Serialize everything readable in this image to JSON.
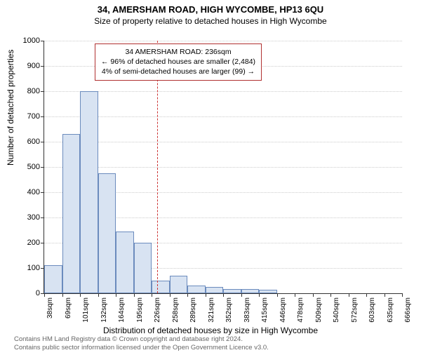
{
  "title": "34, AMERSHAM ROAD, HIGH WYCOMBE, HP13 6QU",
  "subtitle": "Size of property relative to detached houses in High Wycombe",
  "chart": {
    "type": "histogram",
    "y_label": "Number of detached properties",
    "x_label": "Distribution of detached houses by size in High Wycombe",
    "ylim": [
      0,
      1000
    ],
    "ytick_step": 100,
    "x_tick_labels": [
      "38sqm",
      "69sqm",
      "101sqm",
      "132sqm",
      "164sqm",
      "195sqm",
      "226sqm",
      "258sqm",
      "289sqm",
      "321sqm",
      "352sqm",
      "383sqm",
      "415sqm",
      "446sqm",
      "478sqm",
      "509sqm",
      "540sqm",
      "572sqm",
      "603sqm",
      "635sqm",
      "666sqm"
    ],
    "bar_values": [
      110,
      630,
      800,
      475,
      245,
      200,
      50,
      70,
      30,
      25,
      18,
      18,
      15,
      0,
      0,
      0,
      0,
      0,
      0,
      0
    ],
    "bar_fill_color": "#d8e3f2",
    "bar_border_color": "#6b8bbd",
    "grid_color": "#cccccc",
    "background_color": "#ffffff",
    "axis_color": "#333333",
    "reference_line": {
      "value_sqm": 236,
      "color": "#cc3333"
    },
    "annotation": {
      "line1": "34 AMERSHAM ROAD: 236sqm",
      "line2": "← 96% of detached houses are smaller (2,484)",
      "line3": "4% of semi-detached houses are larger (99) →",
      "border_color": "#b03030",
      "font_size": 10.5
    },
    "title_fontsize": 13,
    "subtitle_fontsize": 12,
    "axis_label_fontsize": 12,
    "tick_fontsize": 11
  },
  "footer": {
    "line1": "Contains HM Land Registry data © Crown copyright and database right 2024.",
    "line2": "Contains public sector information licensed under the Open Government Licence v3.0.",
    "color": "#666666"
  }
}
